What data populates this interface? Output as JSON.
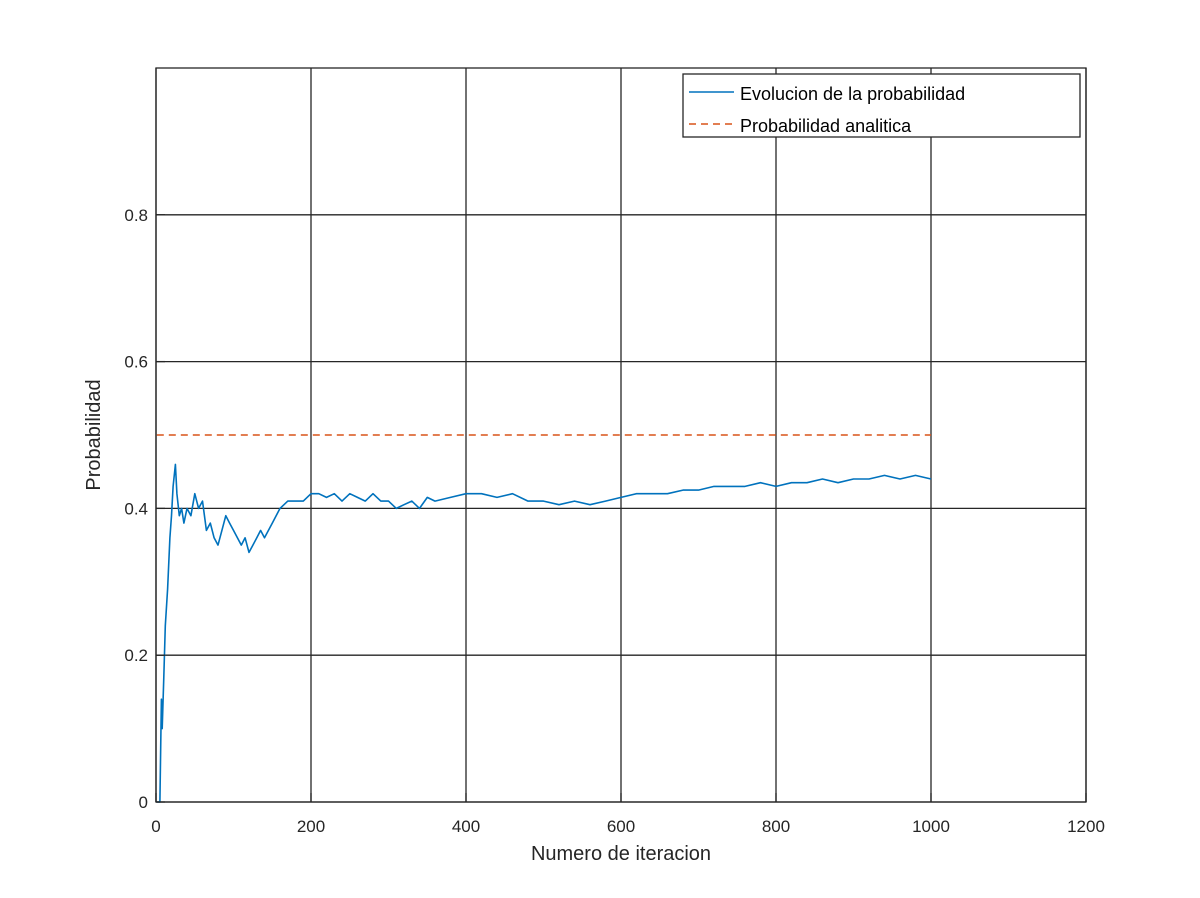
{
  "chart_data": {
    "type": "line",
    "title": "",
    "xlabel": "Numero de iteracion",
    "ylabel": "Probabilidad",
    "xlim": [
      0,
      1200
    ],
    "ylim": [
      0,
      1
    ],
    "xticks": [
      0,
      200,
      400,
      600,
      800,
      1000,
      1200
    ],
    "xtick_labels": [
      "0",
      "200",
      "400",
      "600",
      "800",
      "1000",
      "1200"
    ],
    "yticks": [
      0,
      0.2,
      0.4,
      0.6,
      0.8
    ],
    "ytick_labels": [
      "0",
      "0.2",
      "0.4",
      "0.6",
      "0.8"
    ],
    "grid": true,
    "legend_position": "top-right",
    "series": [
      {
        "name": "Evolucion de la probabilidad",
        "color": "#0072BD",
        "style": "solid",
        "x": [
          1,
          5,
          7,
          8,
          10,
          12,
          15,
          18,
          20,
          22,
          25,
          27,
          30,
          33,
          36,
          40,
          45,
          50,
          55,
          60,
          65,
          70,
          75,
          80,
          85,
          90,
          95,
          100,
          105,
          110,
          115,
          120,
          125,
          130,
          135,
          140,
          150,
          160,
          170,
          180,
          190,
          200,
          210,
          220,
          230,
          240,
          250,
          260,
          270,
          280,
          290,
          300,
          310,
          320,
          330,
          340,
          350,
          360,
          380,
          400,
          420,
          440,
          460,
          480,
          500,
          520,
          540,
          560,
          580,
          600,
          620,
          640,
          660,
          680,
          700,
          720,
          740,
          760,
          780,
          800,
          820,
          840,
          860,
          880,
          900,
          920,
          940,
          960,
          980,
          1000
        ],
        "y": [
          0,
          0,
          0.14,
          0.1,
          0.17,
          0.24,
          0.29,
          0.36,
          0.39,
          0.43,
          0.46,
          0.42,
          0.39,
          0.4,
          0.38,
          0.4,
          0.39,
          0.42,
          0.4,
          0.41,
          0.37,
          0.38,
          0.36,
          0.35,
          0.37,
          0.39,
          0.38,
          0.37,
          0.36,
          0.35,
          0.36,
          0.34,
          0.35,
          0.36,
          0.37,
          0.36,
          0.38,
          0.4,
          0.41,
          0.41,
          0.41,
          0.42,
          0.42,
          0.415,
          0.42,
          0.41,
          0.42,
          0.415,
          0.41,
          0.42,
          0.41,
          0.41,
          0.4,
          0.405,
          0.41,
          0.4,
          0.415,
          0.41,
          0.415,
          0.42,
          0.42,
          0.415,
          0.42,
          0.41,
          0.41,
          0.405,
          0.41,
          0.405,
          0.41,
          0.415,
          0.42,
          0.42,
          0.42,
          0.425,
          0.425,
          0.43,
          0.43,
          0.43,
          0.435,
          0.43,
          0.435,
          0.435,
          0.44,
          0.435,
          0.44,
          0.44,
          0.445,
          0.44,
          0.445,
          0.44
        ]
      },
      {
        "name": "Probabilidad analitica",
        "color": "#D95319",
        "style": "dashed",
        "x": [
          1,
          1000
        ],
        "y": [
          0.5,
          0.5
        ]
      }
    ]
  }
}
